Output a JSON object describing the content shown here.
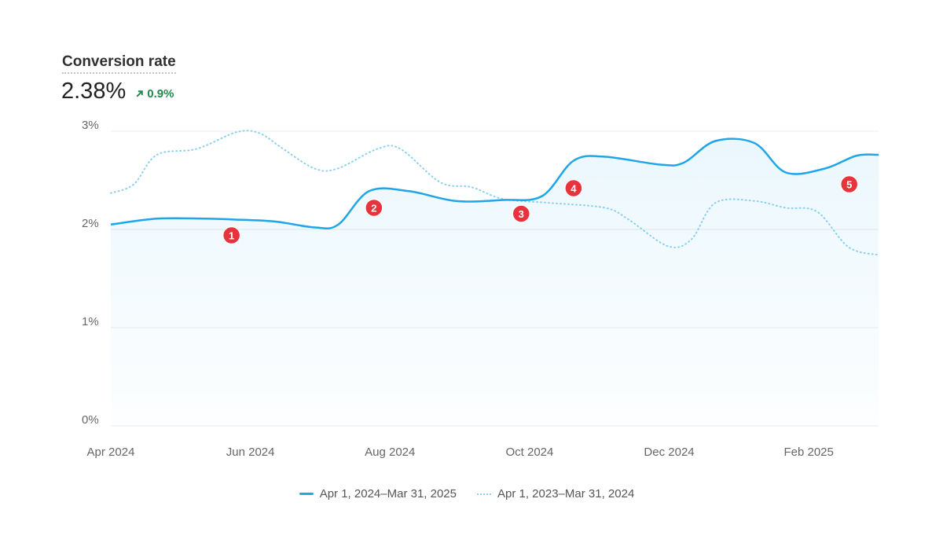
{
  "header": {
    "title": "Conversion rate",
    "value": "2.38%",
    "delta": "0.9%",
    "delta_direction": "up",
    "delta_icon": "arrow-up-right-icon"
  },
  "colors": {
    "current": "#1ea6e8",
    "previous": "#8cd0f0",
    "marker": "#e8323c",
    "delta": "#1f8a4c"
  },
  "chart_data": {
    "type": "line",
    "title": "Conversion rate",
    "xlabel": "",
    "ylabel": "",
    "ylim": [
      0,
      3
    ],
    "xlim_months": [
      0,
      11
    ],
    "y_ticks": [
      {
        "v": 0,
        "label": "0%"
      },
      {
        "v": 1,
        "label": "1%"
      },
      {
        "v": 2,
        "label": "2%"
      },
      {
        "v": 3,
        "label": "3%"
      }
    ],
    "x_ticks": [
      {
        "m": 0,
        "label": "Apr 2024"
      },
      {
        "m": 2,
        "label": "Jun 2024"
      },
      {
        "m": 4,
        "label": "Aug 2024"
      },
      {
        "m": 6,
        "label": "Oct 2024"
      },
      {
        "m": 8,
        "label": "Dec 2024"
      },
      {
        "m": 10,
        "label": "Feb 2025"
      }
    ],
    "grid": true,
    "legend_position": "bottom-center",
    "series": [
      {
        "name": "Apr 1, 2024–Mar 31, 2025",
        "style": "solid",
        "fill": true,
        "points": [
          [
            0,
            2.05
          ],
          [
            0.66,
            2.11
          ],
          [
            1.34,
            2.11
          ],
          [
            1.8,
            2.1
          ],
          [
            2.36,
            2.08
          ],
          [
            2.93,
            2.02
          ],
          [
            3.26,
            2.05
          ],
          [
            3.7,
            2.39
          ],
          [
            4.27,
            2.39
          ],
          [
            4.94,
            2.29
          ],
          [
            5.62,
            2.3
          ],
          [
            6.18,
            2.34
          ],
          [
            6.63,
            2.7
          ],
          [
            7.08,
            2.74
          ],
          [
            7.87,
            2.66
          ],
          [
            8.21,
            2.68
          ],
          [
            8.66,
            2.9
          ],
          [
            9.22,
            2.88
          ],
          [
            9.67,
            2.58
          ],
          [
            10.23,
            2.62
          ],
          [
            10.68,
            2.75
          ],
          [
            11,
            2.76
          ]
        ]
      },
      {
        "name": "Apr 1, 2023–Mar 31, 2024",
        "style": "dotted",
        "fill": false,
        "points": [
          [
            0,
            2.37
          ],
          [
            0.33,
            2.46
          ],
          [
            0.66,
            2.76
          ],
          [
            1.23,
            2.82
          ],
          [
            1.8,
            2.99
          ],
          [
            2.13,
            2.98
          ],
          [
            2.47,
            2.82
          ],
          [
            2.92,
            2.62
          ],
          [
            3.25,
            2.62
          ],
          [
            3.82,
            2.82
          ],
          [
            4.15,
            2.82
          ],
          [
            4.72,
            2.48
          ],
          [
            5.17,
            2.43
          ],
          [
            5.62,
            2.31
          ],
          [
            6.29,
            2.27
          ],
          [
            7.08,
            2.22
          ],
          [
            7.42,
            2.1
          ],
          [
            7.98,
            1.83
          ],
          [
            8.32,
            1.9
          ],
          [
            8.66,
            2.27
          ],
          [
            9.22,
            2.29
          ],
          [
            9.67,
            2.22
          ],
          [
            10.12,
            2.18
          ],
          [
            10.57,
            1.82
          ],
          [
            11,
            1.74
          ]
        ]
      }
    ],
    "annotations": [
      {
        "label": "1",
        "m": 1.73,
        "v": 1.94
      },
      {
        "label": "2",
        "m": 3.77,
        "v": 2.22
      },
      {
        "label": "3",
        "m": 5.88,
        "v": 2.16
      },
      {
        "label": "4",
        "m": 6.63,
        "v": 2.42
      },
      {
        "label": "5",
        "m": 10.58,
        "v": 2.46
      }
    ]
  }
}
